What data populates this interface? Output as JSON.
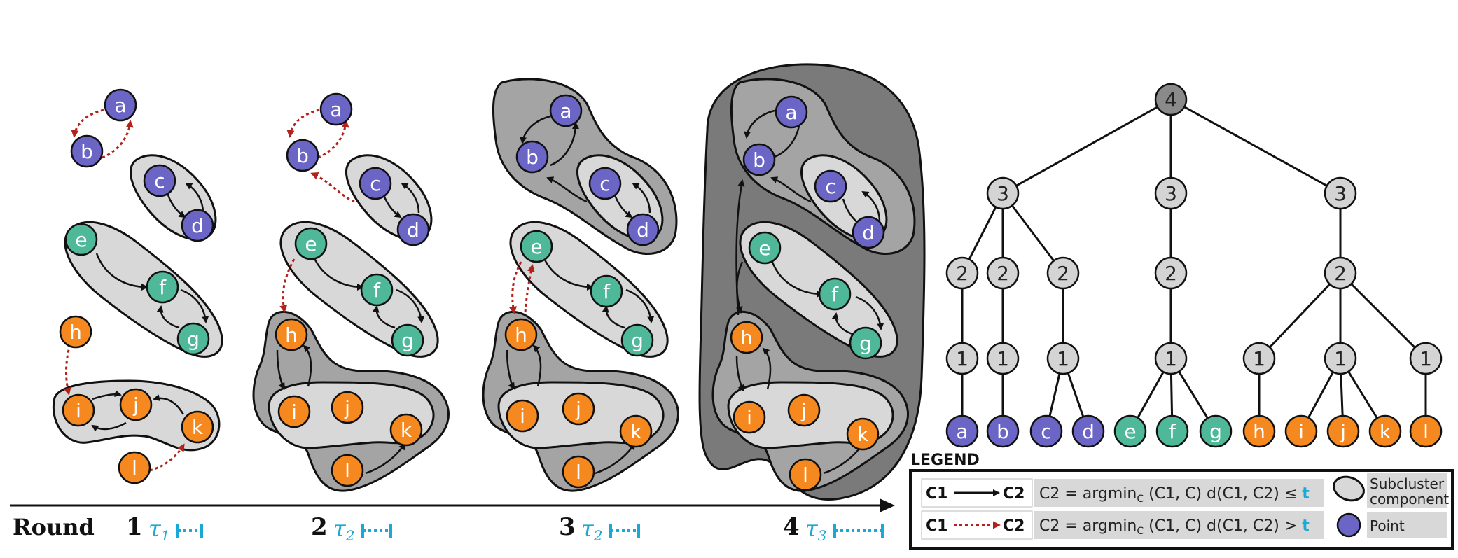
{
  "colors": {
    "blue": "#6b65c6",
    "green": "#4fb898",
    "orange": "#f5891f",
    "tree_node": "#d4d4d4",
    "tree_root": "#8a8a8a",
    "comp_light": "#d8d8d8",
    "comp_mid": "#a4a4a4",
    "comp_dark": "#7a7a7a",
    "red_arrow": "#b3211b",
    "tau_cyan": "#1aa9d6"
  },
  "points": [
    {
      "id": "a",
      "label": "a",
      "group": "blue"
    },
    {
      "id": "b",
      "label": "b",
      "group": "blue"
    },
    {
      "id": "c",
      "label": "c",
      "group": "blue"
    },
    {
      "id": "d",
      "label": "d",
      "group": "blue"
    },
    {
      "id": "e",
      "label": "e",
      "group": "green"
    },
    {
      "id": "f",
      "label": "f",
      "group": "green"
    },
    {
      "id": "g",
      "label": "g",
      "group": "green"
    },
    {
      "id": "h",
      "label": "h",
      "group": "orange"
    },
    {
      "id": "i",
      "label": "i",
      "group": "orange"
    },
    {
      "id": "j",
      "label": "j",
      "group": "orange"
    },
    {
      "id": "k",
      "label": "k",
      "group": "orange"
    },
    {
      "id": "l",
      "label": "l",
      "group": "orange"
    }
  ],
  "rounds": [
    {
      "number": "1",
      "tau": "τ",
      "tau_sub": "1"
    },
    {
      "number": "2",
      "tau": "τ",
      "tau_sub": "2"
    },
    {
      "number": "3",
      "tau": "τ",
      "tau_sub": "2"
    },
    {
      "number": "4",
      "tau": "τ",
      "tau_sub": "3"
    }
  ],
  "axis_label": "Round",
  "tree": {
    "root": "4",
    "level3": [
      "3",
      "3",
      "3"
    ],
    "level2": [
      "2",
      "2",
      "2",
      "2",
      "2"
    ],
    "level1": [
      "1",
      "1",
      "1",
      "1",
      "1",
      "1",
      "1"
    ],
    "leaves": [
      "a",
      "b",
      "c",
      "d",
      "e",
      "f",
      "g",
      "h",
      "i",
      "j",
      "k",
      "l"
    ]
  },
  "legend": {
    "title": "LEGEND",
    "row1_from": "C1",
    "row1_to": "C2",
    "row1_formula": "C2 = argmin",
    "row1_sub": "C",
    "row1_args": " (C1, C)  d(C1, C2) ≤ ",
    "row1_t": "t",
    "row2_from": "C1",
    "row2_to": "C2",
    "row2_formula": "C2 = argmin",
    "row2_sub": "C",
    "row2_args": " (C1, C)  d(C1, C2) > ",
    "row2_t": "t",
    "component_label_1": "Subcluster",
    "component_label_2": "component",
    "point_label": "Point"
  }
}
